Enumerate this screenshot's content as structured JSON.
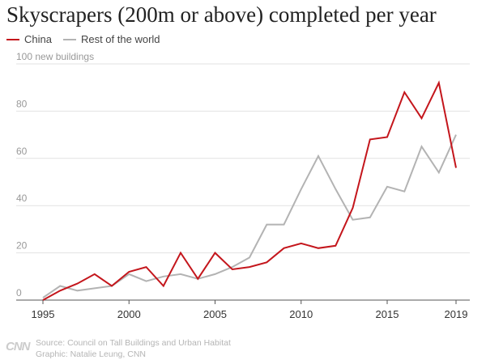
{
  "chart_data": {
    "type": "line",
    "title": "Skyscrapers (200m or above) completed per year",
    "ylabel_top": "100 new buildings",
    "ylim": [
      0,
      100
    ],
    "yticks": [
      0,
      20,
      40,
      60,
      80
    ],
    "xlim": [
      1995,
      2019
    ],
    "xticks": [
      1995,
      2000,
      2005,
      2010,
      2015,
      2019
    ],
    "grid": true,
    "legend_position": "top-left",
    "x": [
      1995,
      1996,
      1997,
      1998,
      1999,
      2000,
      2001,
      2002,
      2003,
      2004,
      2005,
      2006,
      2007,
      2008,
      2009,
      2010,
      2011,
      2012,
      2013,
      2014,
      2015,
      2016,
      2017,
      2018,
      2019
    ],
    "series": [
      {
        "name": "China",
        "color": "#c4161c",
        "values": [
          0,
          4,
          7,
          11,
          6,
          12,
          14,
          6,
          20,
          9,
          20,
          13,
          14,
          16,
          22,
          24,
          22,
          23,
          39,
          68,
          69,
          88,
          77,
          92,
          56
        ]
      },
      {
        "name": "Rest of the world",
        "color": "#b3b3b3",
        "values": [
          1,
          6,
          4,
          5,
          6,
          11,
          8,
          10,
          11,
          9,
          11,
          14,
          18,
          32,
          32,
          47,
          61,
          47,
          34,
          35,
          48,
          46,
          65,
          54,
          70
        ]
      }
    ]
  },
  "legend": {
    "china_label": "China",
    "china_color": "#c4161c",
    "rest_label": "Rest of the world",
    "rest_color": "#b3b3b3"
  },
  "footer": {
    "logo": "CNN",
    "source": "Source: Council on Tall Buildings and Urban Habitat",
    "graphic": "Graphic: Natalie Leung, CNN"
  }
}
